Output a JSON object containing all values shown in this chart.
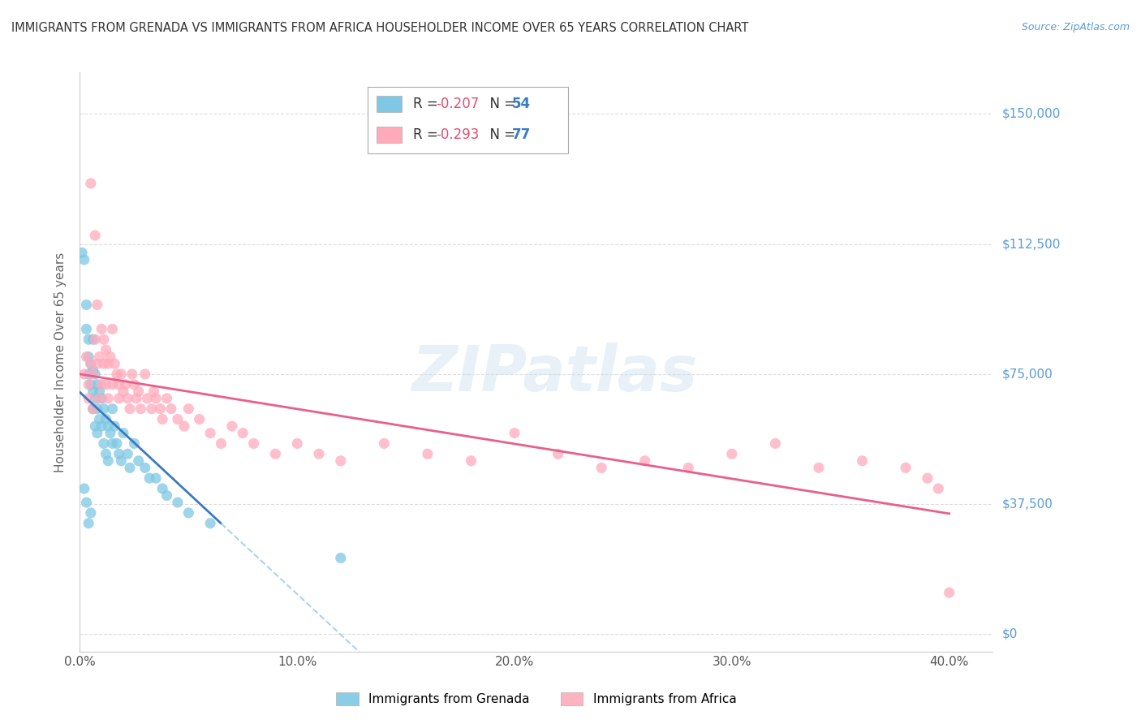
{
  "title": "IMMIGRANTS FROM GRENADA VS IMMIGRANTS FROM AFRICA HOUSEHOLDER INCOME OVER 65 YEARS CORRELATION CHART",
  "source": "Source: ZipAtlas.com",
  "ylabel": "Householder Income Over 65 years",
  "ylabel_ticks": [
    "$0",
    "$37,500",
    "$75,000",
    "$112,500",
    "$150,000"
  ],
  "ylabel_vals": [
    0,
    37500,
    75000,
    112500,
    150000
  ],
  "xtick_labels": [
    "0.0%",
    "10.0%",
    "20.0%",
    "30.0%",
    "40.0%"
  ],
  "xtick_vals": [
    0.0,
    0.1,
    0.2,
    0.3,
    0.4
  ],
  "xlim": [
    0.0,
    0.42
  ],
  "ylim": [
    -5000,
    162000
  ],
  "grenada_R": -0.207,
  "grenada_N": 54,
  "africa_R": -0.293,
  "africa_N": 77,
  "grenada_color": "#7ec8e3",
  "africa_color": "#ffaabb",
  "grenada_line_color": "#3a7abf",
  "africa_line_color": "#e8608a",
  "grenada_dash_color": "#aad4ee",
  "background_color": "#ffffff",
  "grid_color": "#dddddd",
  "legend_R_color": "#e05070",
  "legend_N_color": "#3a7abf",
  "right_label_color": "#5b9bd5",
  "source_color": "#5b9bd5",
  "title_color": "#333333",
  "ylabel_color": "#666666"
}
